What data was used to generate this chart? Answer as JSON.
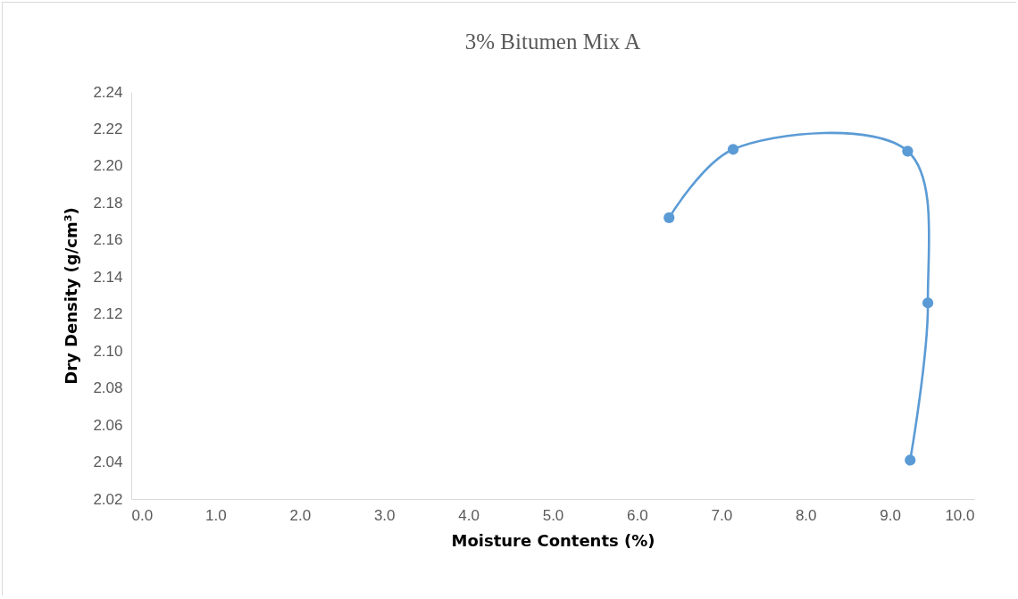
{
  "chart_data": {
    "type": "line",
    "title": "3% Bitumen Mix A",
    "xlabel": "Moisture Contents (%)",
    "ylabel": "Dry  Density (g/cm³)",
    "x": [
      6.38,
      7.14,
      9.21,
      9.45,
      9.24
    ],
    "series": [
      {
        "color": "#5b9bd5",
        "values": [
          2.172,
          2.209,
          2.208,
          2.126,
          2.041
        ]
      }
    ],
    "xlim": [
      0,
      10
    ],
    "ylim": [
      2.02,
      2.24
    ],
    "xticks": [
      {
        "value": 0,
        "label": "0.0"
      },
      {
        "value": 1,
        "label": "1.0"
      },
      {
        "value": 2,
        "label": "2.0"
      },
      {
        "value": 3,
        "label": "3.0"
      },
      {
        "value": 4,
        "label": "4.0"
      },
      {
        "value": 5,
        "label": "5.0"
      },
      {
        "value": 6,
        "label": "6.0"
      },
      {
        "value": 7,
        "label": "7.0"
      },
      {
        "value": 8,
        "label": "8.0"
      },
      {
        "value": 9,
        "label": "9.0"
      },
      {
        "value": 10,
        "label": "10.0"
      }
    ],
    "yticks": [
      2.02,
      2.04,
      2.06,
      2.08,
      {
        "value": 2.1,
        "label": "2.10"
      },
      2.12,
      2.14,
      2.16,
      2.18,
      {
        "value": 2.2,
        "label": "2.20"
      },
      2.22,
      2.24
    ],
    "grid": false,
    "marker": "circle",
    "line_style": "solid"
  }
}
